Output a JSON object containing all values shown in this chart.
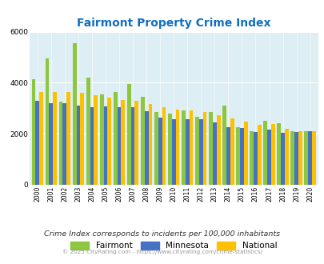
{
  "title": "Fairmont Property Crime Index",
  "years": [
    2000,
    2001,
    2002,
    2003,
    2004,
    2005,
    2006,
    2007,
    2008,
    2009,
    2010,
    2011,
    2012,
    2013,
    2014,
    2015,
    2016,
    2017,
    2018,
    2019,
    2020
  ],
  "fairmont": [
    4150,
    4950,
    3250,
    5550,
    4200,
    3550,
    3650,
    3950,
    3450,
    2850,
    2800,
    2900,
    2650,
    2850,
    3100,
    2250,
    2100,
    2500,
    2400,
    2100,
    2100
  ],
  "minnesota": [
    3280,
    3200,
    3200,
    3100,
    3030,
    3060,
    3050,
    3030,
    2870,
    2620,
    2580,
    2560,
    2580,
    2440,
    2250,
    2230,
    2080,
    2170,
    2040,
    2080,
    2100
  ],
  "national": [
    3640,
    3650,
    3640,
    3600,
    3520,
    3430,
    3330,
    3280,
    3160,
    3030,
    2950,
    2910,
    2860,
    2740,
    2590,
    2490,
    2360,
    2380,
    2200,
    2110,
    2100
  ],
  "fairmont_color": "#8DC63F",
  "minnesota_color": "#4472C4",
  "national_color": "#FFC000",
  "bg_color": "#ddeef5",
  "title_color": "#1070C0",
  "subtitle": "Crime Index corresponds to incidents per 100,000 inhabitants",
  "footer": "© 2025 CityRating.com - https://www.cityrating.com/crime-statistics/",
  "ylim": [
    0,
    6000
  ],
  "yticks": [
    0,
    2000,
    4000,
    6000
  ],
  "bar_width": 0.28
}
